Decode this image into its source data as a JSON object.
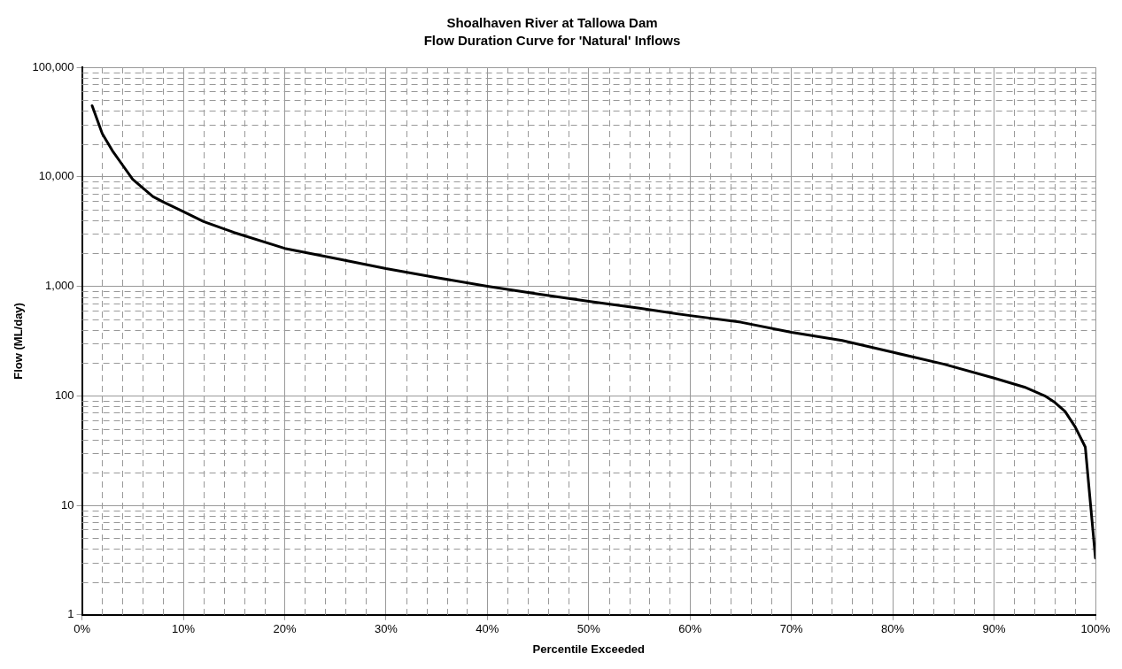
{
  "chart_data": {
    "type": "line",
    "title": "Shoalhaven River at Tallowa Dam",
    "subtitle": "Flow Duration Curve for 'Natural' Inflows",
    "xlabel": "Percentile Exceeded",
    "ylabel": "Flow (ML/day)",
    "x": [
      1,
      2,
      3,
      4,
      5,
      7,
      8,
      10,
      12,
      15,
      20,
      25,
      30,
      35,
      40,
      45,
      50,
      55,
      60,
      65,
      70,
      75,
      80,
      85,
      90,
      93,
      95,
      96,
      97,
      98,
      99,
      100
    ],
    "series": [
      {
        "color": "#000000",
        "values": [
          44500,
          24800,
          17300,
          12800,
          9500,
          6600,
          5900,
          4800,
          3900,
          3100,
          2220,
          1800,
          1450,
          1200,
          1000,
          850,
          730,
          630,
          540,
          470,
          380,
          320,
          250,
          195,
          145,
          120,
          100,
          87,
          72,
          52,
          34,
          3.3
        ]
      }
    ],
    "xlim": [
      0,
      100
    ],
    "xticks": [
      {
        "value": 0,
        "label": "0%"
      },
      {
        "value": 10,
        "label": "10%"
      },
      {
        "value": 20,
        "label": "20%"
      },
      {
        "value": 30,
        "label": "30%"
      },
      {
        "value": 40,
        "label": "40%"
      },
      {
        "value": 50,
        "label": "50%"
      },
      {
        "value": 60,
        "label": "60%"
      },
      {
        "value": 70,
        "label": "70%"
      },
      {
        "value": 80,
        "label": "80%"
      },
      {
        "value": 90,
        "label": "90%"
      },
      {
        "value": 100,
        "label": "100%"
      }
    ],
    "ylim": [
      1,
      100000
    ],
    "yticks": [
      1,
      10,
      100,
      {
        "value": 1000,
        "label": "1,000"
      },
      {
        "value": 10000,
        "label": "10,000"
      },
      {
        "value": 100000,
        "label": "100,000"
      }
    ],
    "log": "y",
    "grid": true,
    "legend": false,
    "marker": "none",
    "line_style": "solid"
  }
}
